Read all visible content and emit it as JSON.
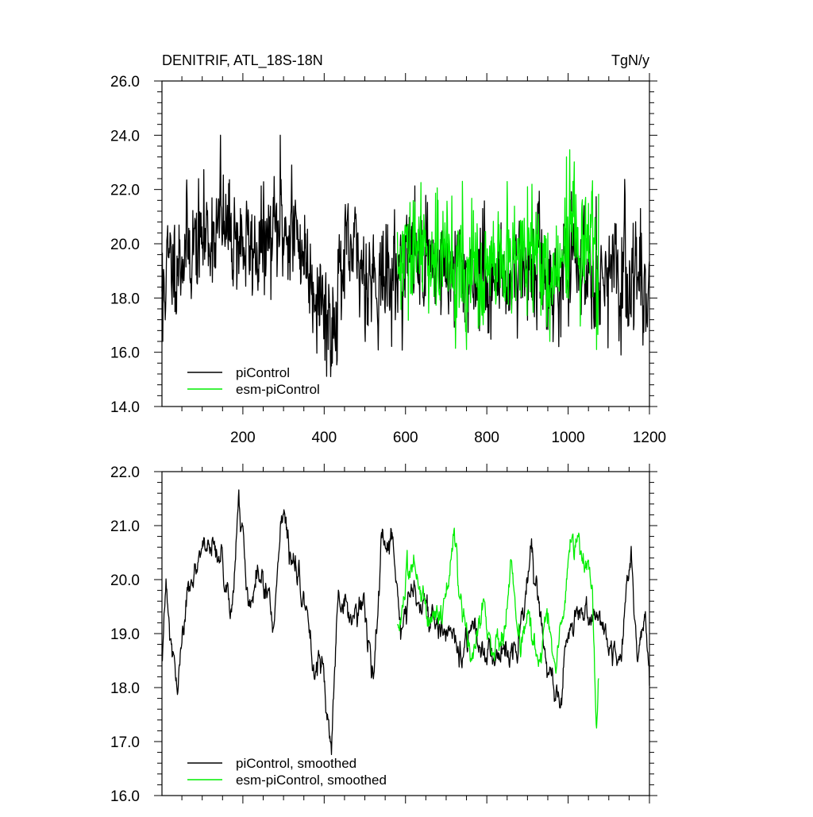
{
  "chart_data": [
    {
      "type": "line",
      "title": "DENITRIF, ATL_18S-18N",
      "units": "TgN/y",
      "xlabel": "",
      "ylabel": "",
      "xlim": [
        1,
        1200
      ],
      "ylim": [
        14,
        26
      ],
      "x_ticks": [
        200,
        400,
        600,
        800,
        1000,
        1200
      ],
      "y_ticks": [
        "14.0",
        "16.0",
        "18.0",
        "20.0",
        "22.0",
        "24.0",
        "26.0"
      ],
      "legend": {
        "placement": "bottom-left",
        "entries": [
          "piControl",
          "esm-piControl"
        ]
      },
      "series": [
        {
          "name": "piControl",
          "color": "#000000",
          "x_start": 1,
          "x_end": 1200,
          "mean": 19.3,
          "std": 1.1,
          "seed": 11,
          "smoothed": false,
          "anchors": [
            [
              1,
              18.5
            ],
            [
              20,
              19.2
            ],
            [
              60,
              19.8
            ],
            [
              100,
              20.2
            ],
            [
              140,
              20.6
            ],
            [
              180,
              20.3
            ],
            [
              220,
              19.7
            ],
            [
              260,
              20.0
            ],
            [
              300,
              20.6
            ],
            [
              340,
              20.1
            ],
            [
              370,
              18.8
            ],
            [
              400,
              17.8
            ],
            [
              420,
              17.2
            ],
            [
              440,
              18.9
            ],
            [
              470,
              19.6
            ],
            [
              500,
              19.0
            ],
            [
              560,
              18.6
            ],
            [
              600,
              19.4
            ],
            [
              650,
              19.6
            ],
            [
              700,
              19.0
            ],
            [
              760,
              18.9
            ],
            [
              820,
              18.6
            ],
            [
              880,
              19.2
            ],
            [
              940,
              19.0
            ],
            [
              960,
              18.3
            ],
            [
              1000,
              19.0
            ],
            [
              1060,
              19.3
            ],
            [
              1100,
              18.6
            ],
            [
              1160,
              18.8
            ],
            [
              1200,
              18.4
            ]
          ],
          "spikes": [
            [
              3,
              16.4
            ],
            [
              145,
              24.0
            ],
            [
              292,
              24.0
            ],
            [
              320,
              22.9
            ],
            [
              416,
              15.1
            ],
            [
              420,
              15.6
            ],
            [
              410,
              16.1
            ],
            [
              1140,
              21.8
            ],
            [
              1178,
              21.3
            ],
            [
              1130,
              15.9
            ],
            [
              790,
              21.3
            ]
          ]
        },
        {
          "name": "esm-piControl",
          "color": "#00ee00",
          "x_start": 580,
          "x_end": 1075,
          "mean": 19.2,
          "std": 1.2,
          "seed": 29,
          "smoothed": false,
          "anchors": [
            [
              580,
              19.0
            ],
            [
              620,
              19.5
            ],
            [
              660,
              19.8
            ],
            [
              700,
              19.3
            ],
            [
              740,
              19.0
            ],
            [
              780,
              18.7
            ],
            [
              820,
              18.8
            ],
            [
              860,
              19.3
            ],
            [
              900,
              19.6
            ],
            [
              940,
              19.3
            ],
            [
              970,
              18.6
            ],
            [
              1000,
              20.3
            ],
            [
              1030,
              20.1
            ],
            [
              1060,
              19.8
            ],
            [
              1075,
              18.5
            ]
          ],
          "spikes": [
            [
              996,
              23.2
            ],
            [
              1012,
              22.3
            ],
            [
              900,
              22.1
            ],
            [
              740,
              22.3
            ],
            [
              680,
              21.6
            ],
            [
              750,
              16.1
            ],
            [
              955,
              16.4
            ],
            [
              1070,
              16.1
            ]
          ]
        },
        {
          "name": "piControl, smoothed",
          "panel": 2,
          "color": "#000000"
        },
        {
          "name": "esm-piControl, smoothed",
          "panel": 2,
          "color": "#00ee00"
        }
      ]
    },
    {
      "type": "line",
      "title": "",
      "xlabel": "",
      "ylabel": "",
      "xlim": [
        1,
        1200
      ],
      "ylim": [
        16,
        22
      ],
      "y_ticks": [
        "16.0",
        "17.0",
        "18.0",
        "19.0",
        "20.0",
        "21.0",
        "22.0"
      ],
      "legend": {
        "placement": "bottom-left",
        "entries": [
          "piControl, smoothed",
          "esm-piControl, smoothed"
        ]
      },
      "series": [
        {
          "name": "piControl, smoothed",
          "color": "#000000",
          "x_start": 1,
          "x_end": 1200,
          "mean": 19.3,
          "std": 0.3,
          "seed": 47,
          "smoothed": true,
          "anchors": [
            [
              1,
              18.8
            ],
            [
              10,
              19.9
            ],
            [
              20,
              18.9
            ],
            [
              40,
              17.9
            ],
            [
              60,
              19.6
            ],
            [
              90,
              20.3
            ],
            [
              120,
              20.7
            ],
            [
              150,
              20.3
            ],
            [
              170,
              19.3
            ],
            [
              190,
              21.5
            ],
            [
              215,
              19.6
            ],
            [
              240,
              20.1
            ],
            [
              275,
              19.2
            ],
            [
              295,
              21.4
            ],
            [
              320,
              20.3
            ],
            [
              350,
              19.8
            ],
            [
              375,
              18.2
            ],
            [
              395,
              18.8
            ],
            [
              405,
              17.6
            ],
            [
              418,
              16.9
            ],
            [
              435,
              19.6
            ],
            [
              460,
              19.2
            ],
            [
              490,
              19.6
            ],
            [
              520,
              18.2
            ],
            [
              540,
              20.4
            ],
            [
              570,
              20.6
            ],
            [
              590,
              19.0
            ],
            [
              620,
              19.8
            ],
            [
              660,
              19.3
            ],
            [
              700,
              19.0
            ],
            [
              740,
              18.7
            ],
            [
              770,
              19.2
            ],
            [
              790,
              18.6
            ],
            [
              820,
              18.4
            ],
            [
              850,
              18.7
            ],
            [
              880,
              18.9
            ],
            [
              910,
              20.4
            ],
            [
              940,
              18.6
            ],
            [
              960,
              18.0
            ],
            [
              980,
              17.7
            ],
            [
              1000,
              19.1
            ],
            [
              1030,
              19.4
            ],
            [
              1060,
              19.0
            ],
            [
              1080,
              19.3
            ],
            [
              1100,
              18.8
            ],
            [
              1130,
              18.6
            ],
            [
              1155,
              20.5
            ],
            [
              1170,
              18.5
            ],
            [
              1190,
              19.4
            ],
            [
              1200,
              18.1
            ]
          ]
        },
        {
          "name": "esm-piControl, smoothed",
          "color": "#00ee00",
          "x_start": 580,
          "x_end": 1075,
          "mean": 19.3,
          "std": 0.3,
          "seed": 83,
          "smoothed": true,
          "anchors": [
            [
              580,
              19.1
            ],
            [
              620,
              20.3
            ],
            [
              660,
              19.3
            ],
            [
              700,
              19.6
            ],
            [
              720,
              20.9
            ],
            [
              740,
              19.2
            ],
            [
              760,
              18.3
            ],
            [
              790,
              19.6
            ],
            [
              810,
              18.8
            ],
            [
              840,
              18.9
            ],
            [
              860,
              20.3
            ],
            [
              880,
              18.9
            ],
            [
              900,
              19.2
            ],
            [
              930,
              18.5
            ],
            [
              950,
              19.3
            ],
            [
              970,
              18.2
            ],
            [
              990,
              19.4
            ],
            [
              1005,
              20.9
            ],
            [
              1025,
              20.6
            ],
            [
              1045,
              20.4
            ],
            [
              1060,
              19.6
            ],
            [
              1070,
              17.2
            ],
            [
              1075,
              18.2
            ]
          ]
        }
      ]
    }
  ]
}
